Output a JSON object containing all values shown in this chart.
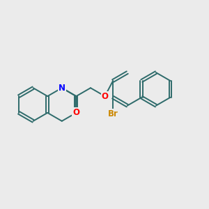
{
  "background_color": "#ebebeb",
  "bond_color": "#2e6b6b",
  "N_color": "#0000ff",
  "O_color": "#ff0000",
  "Br_color": "#cc8800",
  "lw": 1.4,
  "doff": 0.06,
  "figsize": [
    3.0,
    3.0
  ],
  "dpi": 100,
  "xlim": [
    -0.5,
    8.5
  ],
  "ylim": [
    -0.3,
    5.3
  ]
}
